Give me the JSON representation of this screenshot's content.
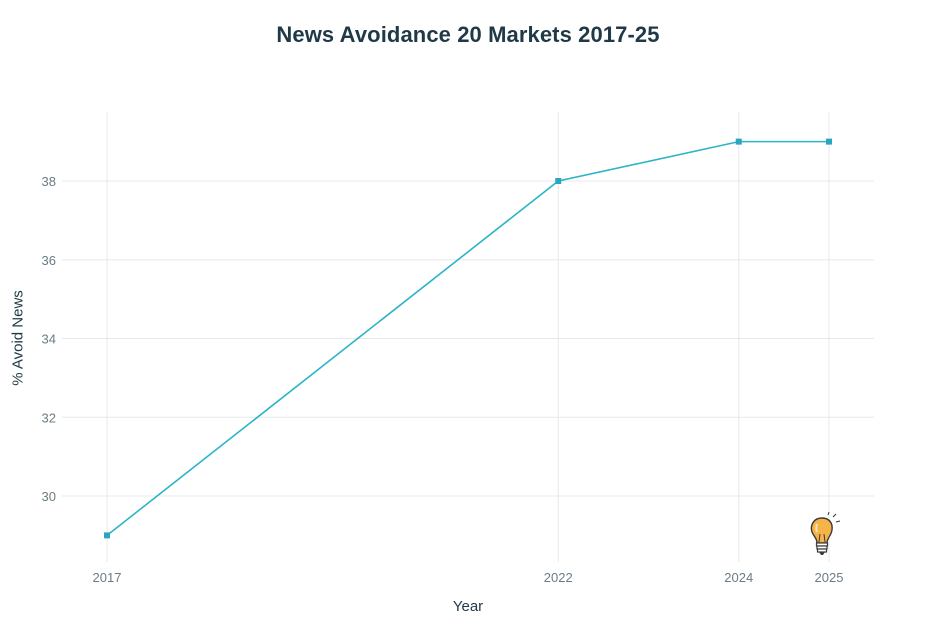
{
  "chart_data": {
    "type": "line",
    "title": "News Avoidance 20 Markets 2017-25",
    "xlabel": "Year",
    "ylabel": "% Avoid News",
    "x": [
      2017,
      2022,
      2024,
      2025
    ],
    "x_tick_labels": [
      "2017",
      "2022",
      "2024",
      "2025"
    ],
    "series": [
      {
        "values": [
          29,
          38,
          39,
          39
        ]
      }
    ],
    "y_ticks": [
      30,
      32,
      34,
      36,
      38
    ],
    "ylim": [
      28.3,
      39.7
    ],
    "xlim": [
      2016.7,
      2025.3
    ],
    "grid": true,
    "colors": {
      "line": "#2bb4c8",
      "marker": "#2aa6c0",
      "grid": "#e6e9eb",
      "title": "#1f3a46",
      "tick": "#6b7c84"
    },
    "decoration_icon": "lightbulb-icon"
  }
}
